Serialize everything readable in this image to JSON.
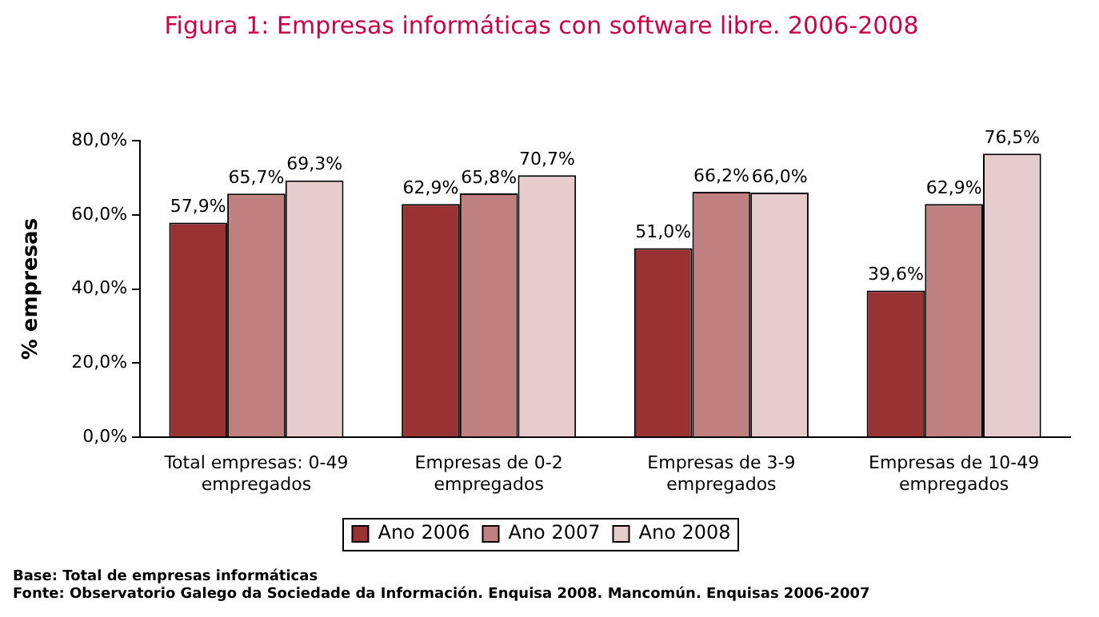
{
  "chart_data": {
    "type": "bar",
    "title": "Figura 1: Empresas informáticas con software libre. 2006-2008",
    "ylabel": "% empresas",
    "categories": [
      "Total empresas: 0-49 empregados",
      "Empresas de 0-2 empregados",
      "Empresas de 3-9 empregados",
      "Empresas de 10-49 empregados"
    ],
    "series": [
      {
        "name": "Ano 2006",
        "color": "#993333",
        "values": [
          57.9,
          62.9,
          51.0,
          39.6
        ],
        "value_labels": [
          "57,9%",
          "62,9%",
          "51,0%",
          "39,6%"
        ]
      },
      {
        "name": "Ano 2007",
        "color": "#c08080",
        "values": [
          65.7,
          65.8,
          66.2,
          62.9
        ],
        "value_labels": [
          "65,7%",
          "65,8%",
          "66,2%",
          "62,9%"
        ]
      },
      {
        "name": "Ano 2008",
        "color": "#e6cccc",
        "values": [
          69.3,
          70.7,
          66.0,
          76.5
        ],
        "value_labels": [
          "69,3%",
          "70,7%",
          "66,0%",
          "76,5%"
        ]
      }
    ],
    "ylim": [
      0,
      80
    ],
    "yticks": [
      {
        "value": 0,
        "label": "0,0%"
      },
      {
        "value": 20,
        "label": "20,0%"
      },
      {
        "value": 40,
        "label": "40,0%"
      },
      {
        "value": 60,
        "label": "60,0%"
      },
      {
        "value": 80,
        "label": "80,0%"
      }
    ],
    "grid": false,
    "legend": "bottom",
    "annotations": [
      "Base: Total de empresas informáticas",
      "Fonte: Observatorio Galego da Sociedade da Información. Enquisa 2008. Mancomún. Enquisas 2006-2007"
    ]
  }
}
